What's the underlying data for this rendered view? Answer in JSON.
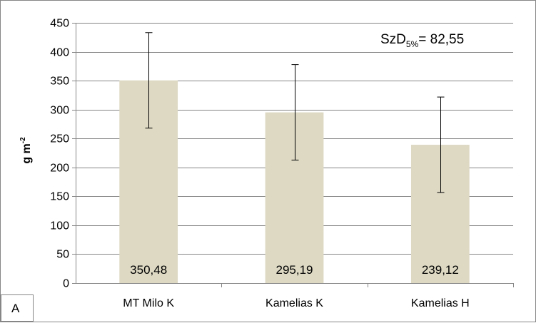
{
  "panel_label": "A",
  "colors": {
    "bar": "#DDD9C3",
    "grid": "#868686",
    "axis": "#868686",
    "error_bar": "#000000"
  },
  "chart_data": {
    "type": "bar",
    "categories": [
      "MT Milo K",
      "Kamelias K",
      "Kamelias H"
    ],
    "values": [
      350.48,
      295.19,
      239.12
    ],
    "data_labels": [
      "350,48",
      "295,19",
      "239,12"
    ],
    "error": [
      82.55,
      82.55,
      82.55
    ],
    "ylabel_main": "g m",
    "ylabel_sup": "-2",
    "annotation": {
      "main": "SzD",
      "sub": "5%",
      "rest": "= 82,55"
    },
    "ylim": [
      0,
      450
    ],
    "yticks": [
      0,
      50,
      100,
      150,
      200,
      250,
      300,
      350,
      400,
      450
    ],
    "grid": true
  }
}
